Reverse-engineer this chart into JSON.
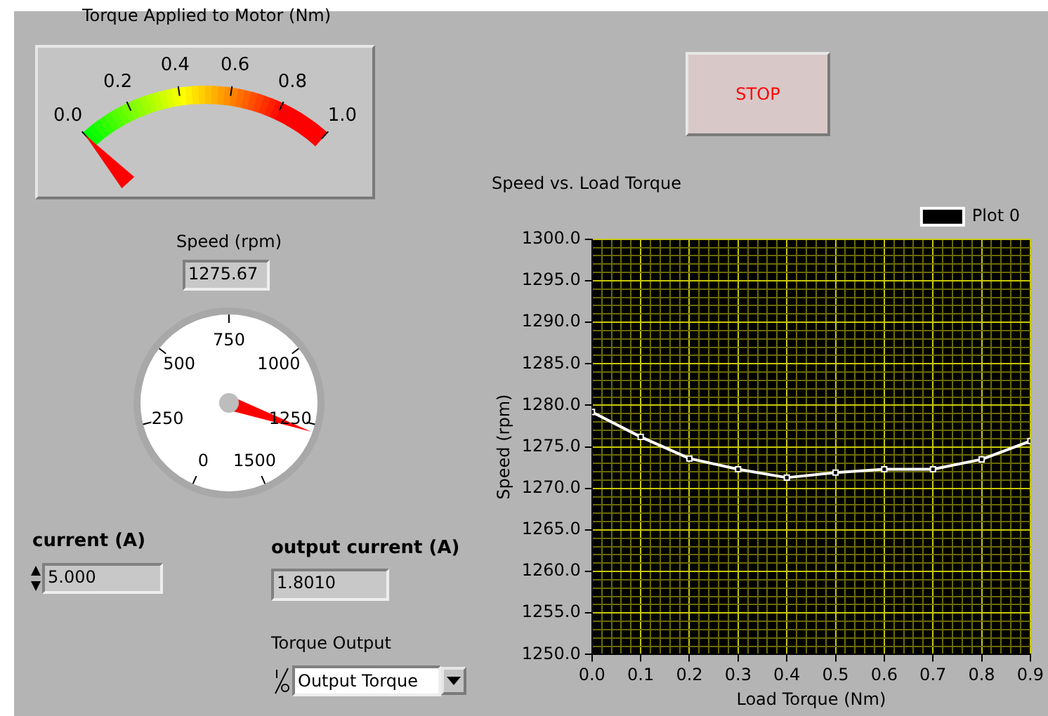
{
  "chart_data": [
    {
      "type": "other",
      "title": "Torque Applied to Motor (Nm)",
      "annotations": [
        "0.0",
        "0.2",
        "0.4",
        "0.6",
        "0.8",
        "1.0"
      ]
    },
    {
      "type": "other",
      "title": "Speed (rpm)",
      "values": [
        1275.67
      ],
      "value_labels": [
        "1275.67"
      ],
      "annotations": [
        "0",
        "250",
        "500",
        "750",
        "1000",
        "1250",
        "1500"
      ]
    },
    {
      "type": "line",
      "title": "Speed vs. Load Torque",
      "xlabel": "Load Torque (Nm)",
      "ylabel": "Speed (rpm)",
      "x": [
        0,
        0.1,
        0.2,
        0.3,
        0.4,
        0.5,
        0.6,
        0.7,
        0.8,
        0.9
      ],
      "series": [
        {
          "name": "Plot 0",
          "color": "#ffffff",
          "values": [
            1279.2,
            1276.2,
            1273.6,
            1272.3,
            1271.3,
            1271.9,
            1272.3,
            1272.3,
            1273.5,
            1275.7
          ]
        }
      ],
      "xlim": [
        0,
        0.9
      ],
      "xticks": [
        {
          "value": 0,
          "label": "0.0"
        },
        {
          "value": 0.02,
          "label": null
        },
        {
          "value": 0.04,
          "label": null
        },
        {
          "value": 0.06,
          "label": null
        },
        {
          "value": 0.08,
          "label": null
        },
        {
          "value": 0.1,
          "label": "0.1"
        },
        {
          "value": 0.12,
          "label": null
        },
        {
          "value": 0.14,
          "label": null
        },
        {
          "value": 0.16,
          "label": null
        },
        {
          "value": 0.18,
          "label": null
        },
        {
          "value": 0.2,
          "label": "0.2"
        },
        {
          "value": 0.22,
          "label": null
        },
        {
          "value": 0.24,
          "label": null
        },
        {
          "value": 0.26,
          "label": null
        },
        {
          "value": 0.28,
          "label": null
        },
        {
          "value": 0.3,
          "label": "0.3"
        },
        {
          "value": 0.32,
          "label": null
        },
        {
          "value": 0.34,
          "label": null
        },
        {
          "value": 0.36,
          "label": null
        },
        {
          "value": 0.38,
          "label": null
        },
        {
          "value": 0.4,
          "label": "0.4"
        },
        {
          "value": 0.42,
          "label": null
        },
        {
          "value": 0.44,
          "label": null
        },
        {
          "value": 0.46,
          "label": null
        },
        {
          "value": 0.48,
          "label": null
        },
        {
          "value": 0.5,
          "label": "0.5"
        },
        {
          "value": 0.52,
          "label": null
        },
        {
          "value": 0.54,
          "label": null
        },
        {
          "value": 0.56,
          "label": null
        },
        {
          "value": 0.58,
          "label": null
        },
        {
          "value": 0.6,
          "label": "0.6"
        },
        {
          "value": 0.62,
          "label": null
        },
        {
          "value": 0.64,
          "label": null
        },
        {
          "value": 0.66,
          "label": null
        },
        {
          "value": 0.68,
          "label": null
        },
        {
          "value": 0.7,
          "label": "0.7"
        },
        {
          "value": 0.72,
          "label": null
        },
        {
          "value": 0.74,
          "label": null
        },
        {
          "value": 0.76,
          "label": null
        },
        {
          "value": 0.78,
          "label": null
        },
        {
          "value": 0.8,
          "label": "0.8"
        },
        {
          "value": 0.82,
          "label": null
        },
        {
          "value": 0.84,
          "label": null
        },
        {
          "value": 0.86,
          "label": null
        },
        {
          "value": 0.88,
          "label": null
        },
        {
          "value": 0.9,
          "label": "0.9"
        }
      ],
      "ylim": [
        1250,
        1300
      ],
      "yticks": [
        {
          "value": 1250,
          "label": "1250.0"
        },
        {
          "value": 1251,
          "label": null
        },
        {
          "value": 1252,
          "label": null
        },
        {
          "value": 1253,
          "label": null
        },
        {
          "value": 1254,
          "label": null
        },
        {
          "value": 1255,
          "label": "1255.0"
        },
        {
          "value": 1256,
          "label": null
        },
        {
          "value": 1257,
          "label": null
        },
        {
          "value": 1258,
          "label": null
        },
        {
          "value": 1259,
          "label": null
        },
        {
          "value": 1260,
          "label": "1260.0"
        },
        {
          "value": 1261,
          "label": null
        },
        {
          "value": 1262,
          "label": null
        },
        {
          "value": 1263,
          "label": null
        },
        {
          "value": 1264,
          "label": null
        },
        {
          "value": 1265,
          "label": "1265.0"
        },
        {
          "value": 1266,
          "label": null
        },
        {
          "value": 1267,
          "label": null
        },
        {
          "value": 1268,
          "label": null
        },
        {
          "value": 1269,
          "label": null
        },
        {
          "value": 1270,
          "label": "1270.0"
        },
        {
          "value": 1271,
          "label": null
        },
        {
          "value": 1272,
          "label": null
        },
        {
          "value": 1273,
          "label": null
        },
        {
          "value": 1274,
          "label": null
        },
        {
          "value": 1275,
          "label": "1275.0"
        },
        {
          "value": 1276,
          "label": null
        },
        {
          "value": 1277,
          "label": null
        },
        {
          "value": 1278,
          "label": null
        },
        {
          "value": 1279,
          "label": null
        },
        {
          "value": 1280,
          "label": "1280.0"
        },
        {
          "value": 1281,
          "label": null
        },
        {
          "value": 1282,
          "label": null
        },
        {
          "value": 1283,
          "label": null
        },
        {
          "value": 1284,
          "label": null
        },
        {
          "value": 1285,
          "label": "1285.0"
        },
        {
          "value": 1286,
          "label": null
        },
        {
          "value": 1287,
          "label": null
        },
        {
          "value": 1288,
          "label": null
        },
        {
          "value": 1289,
          "label": null
        },
        {
          "value": 1290,
          "label": "1290.0"
        },
        {
          "value": 1291,
          "label": null
        },
        {
          "value": 1292,
          "label": null
        },
        {
          "value": 1293,
          "label": null
        },
        {
          "value": 1294,
          "label": null
        },
        {
          "value": 1295,
          "label": "1295.0"
        },
        {
          "value": 1296,
          "label": null
        },
        {
          "value": 1297,
          "label": null
        },
        {
          "value": 1298,
          "label": null
        },
        {
          "value": 1299,
          "label": null
        },
        {
          "value": 1300,
          "label": "1300.0"
        }
      ],
      "grid": true,
      "legend": "top right",
      "marker": "square",
      "line_style": "solid"
    },
    {
      "type": "other",
      "annotations": [
        "STOP",
        "current (A)",
        "5.000",
        "output current (A)",
        "1.8010",
        "Torque Output",
        "Output Torque"
      ]
    }
  ]
}
